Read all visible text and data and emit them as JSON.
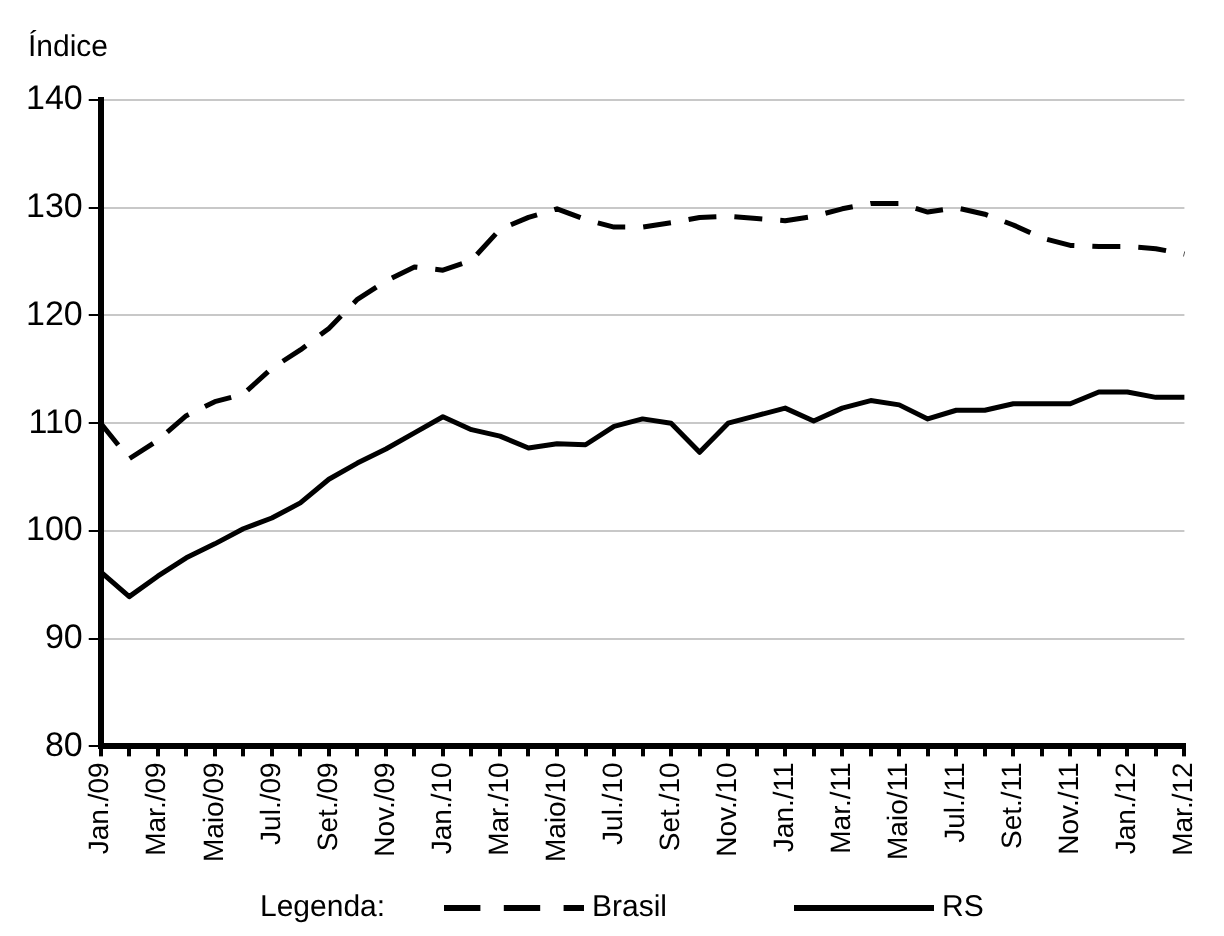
{
  "chart_data": {
    "type": "line",
    "ylabel": "Índice",
    "legend_title": "Legenda:",
    "legend": "bottom",
    "grid": "y",
    "marker": "none",
    "categories": [
      "Jan./09",
      null,
      "Mar./09",
      null,
      "Maio/09",
      null,
      "Jul./09",
      null,
      "Set./09",
      null,
      "Nov./09",
      null,
      "Jan./10",
      null,
      "Mar./10",
      null,
      "Maio/10",
      null,
      "Jul./10",
      null,
      "Set./10",
      null,
      "Nov./10",
      null,
      "Jan./11",
      null,
      "Mar./11",
      null,
      "Maio/11",
      null,
      "Jul./11",
      null,
      "Set./11",
      null,
      "Nov./11",
      null,
      "Jan./12",
      null,
      "Mar./12"
    ],
    "ylim": [
      80,
      140
    ],
    "yticks": [
      80,
      90,
      100,
      110,
      120,
      130,
      140
    ],
    "series": [
      {
        "name": "Brasil",
        "color": "#000000",
        "line_style": "dashed",
        "values": [
          110,
          106.7,
          108.4,
          110.7,
          112,
          112.7,
          115.1,
          116.8,
          118.8,
          121.5,
          123.2,
          124.5,
          124.2,
          125.1,
          128,
          129.1,
          129.9,
          128.9,
          128.2,
          128.2,
          128.6,
          129.1,
          129.2,
          129,
          128.8,
          129.2,
          129.9,
          130.4,
          130.4,
          129.6,
          130,
          129.4,
          128.4,
          127.2,
          126.5,
          126.4,
          126.4,
          126.2,
          125.7
        ]
      },
      {
        "name": "RS",
        "color": "#000000",
        "line_style": "solid",
        "values": [
          96.2,
          93.9,
          95.8,
          97.5,
          98.8,
          100.2,
          101.2,
          102.6,
          104.8,
          106.3,
          107.6,
          109.1,
          110.6,
          109.4,
          108.8,
          107.7,
          108.1,
          108,
          109.7,
          110.4,
          110,
          107.3,
          110,
          110.7,
          111.4,
          110.2,
          111.4,
          112.1,
          111.7,
          110.4,
          111.2,
          111.2,
          111.8,
          111.8,
          111.8,
          112.9,
          112.9,
          112.4,
          112.4
        ]
      }
    ]
  }
}
